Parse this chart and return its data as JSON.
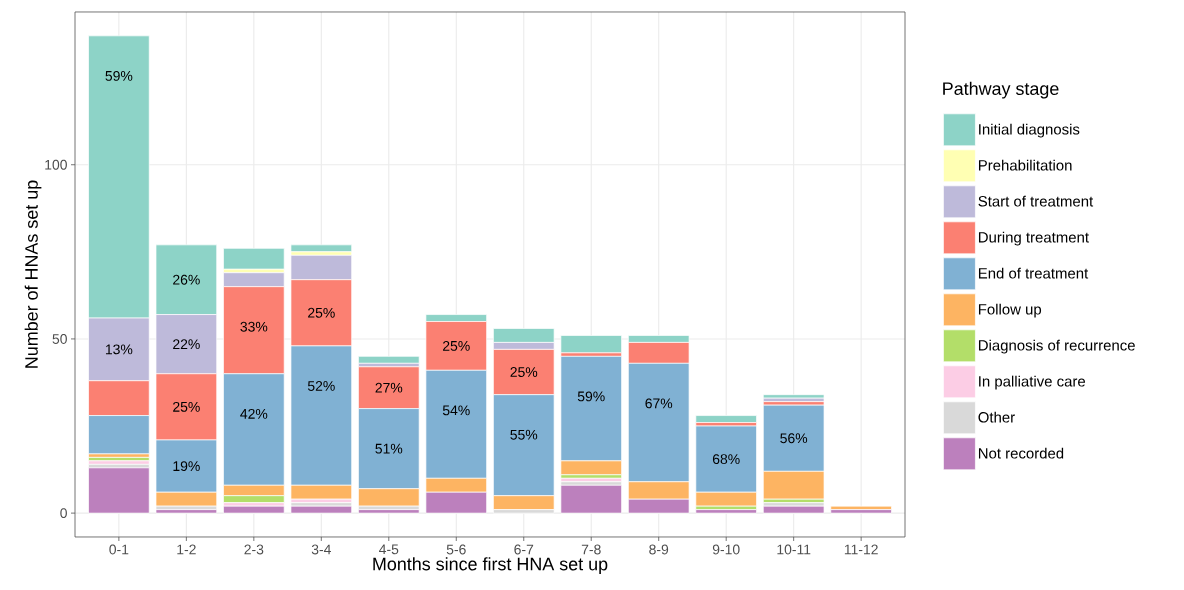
{
  "chart_data": {
    "type": "bar",
    "stacked": true,
    "xlabel": "Months since first HNA set up",
    "ylabel": "Number of HNAs set up",
    "legend_title": "Pathway stage",
    "categories": [
      "0-1",
      "1-2",
      "2-3",
      "3-4",
      "4-5",
      "5-6",
      "6-7",
      "7-8",
      "8-9",
      "9-10",
      "10-11",
      "11-12"
    ],
    "ylim": [
      -6.85,
      143.85
    ],
    "yticks": [
      0,
      50,
      100
    ],
    "grid": true,
    "legend": "right",
    "series": [
      {
        "name": "Not recorded",
        "color": "#bc80bd",
        "values": [
          13,
          1,
          2,
          2,
          1,
          6,
          0,
          8,
          4,
          1,
          2,
          1
        ]
      },
      {
        "name": "Other",
        "color": "#d9d9d9",
        "values": [
          1,
          1,
          0,
          1,
          1,
          0,
          1,
          1,
          0,
          0,
          1,
          0
        ]
      },
      {
        "name": "In palliative care",
        "color": "#fccde5",
        "values": [
          1,
          0,
          1,
          1,
          0,
          0,
          0,
          1,
          0,
          0,
          0,
          0
        ]
      },
      {
        "name": "Diagnosis of recurrence",
        "color": "#b3de69",
        "values": [
          1,
          0,
          2,
          0,
          0,
          0,
          0,
          1,
          0,
          1,
          1,
          0
        ]
      },
      {
        "name": "Follow up",
        "color": "#fdb462",
        "values": [
          1,
          4,
          3,
          4,
          5,
          4,
          4,
          4,
          5,
          4,
          8,
          1
        ]
      },
      {
        "name": "End of treatment",
        "color": "#80b1d3",
        "values": [
          11,
          15,
          32,
          40,
          23,
          31,
          29,
          30,
          34,
          19,
          19,
          0
        ]
      },
      {
        "name": "During treatment",
        "color": "#fb8072",
        "values": [
          10,
          19,
          25,
          19,
          12,
          14,
          13,
          1,
          6,
          1,
          1,
          0
        ]
      },
      {
        "name": "Start of treatment",
        "color": "#bebada",
        "values": [
          18,
          17,
          4,
          7,
          1,
          0,
          2,
          0,
          0,
          0,
          1,
          0
        ]
      },
      {
        "name": "Prehabilitation",
        "color": "#ffffb3",
        "values": [
          0,
          0,
          1,
          1,
          0,
          0,
          0,
          0,
          0,
          0,
          0,
          0
        ]
      },
      {
        "name": "Initial diagnosis",
        "color": "#8dd3c7",
        "values": [
          81,
          20,
          6,
          2,
          2,
          2,
          4,
          5,
          2,
          2,
          1,
          0
        ]
      }
    ],
    "annotations": [
      {
        "text": "59%",
        "x": "0-1",
        "y": 137
      },
      {
        "text": "13%",
        "x": "0-1",
        "y": 56
      },
      {
        "text": "26%",
        "x": "1-2",
        "y": 77
      },
      {
        "text": "22%",
        "x": "1-2",
        "y": 57
      },
      {
        "text": "25%",
        "x": "1-2",
        "y": 40
      },
      {
        "text": "19%",
        "x": "1-2",
        "y": 21
      },
      {
        "text": "33%",
        "x": "2-3",
        "y": 65
      },
      {
        "text": "42%",
        "x": "2-3",
        "y": 40
      },
      {
        "text": "25%",
        "x": "3-4",
        "y": 67
      },
      {
        "text": "52%",
        "x": "3-4",
        "y": 48
      },
      {
        "text": "27%",
        "x": "4-5",
        "y": 42
      },
      {
        "text": "51%",
        "x": "4-5",
        "y": 30
      },
      {
        "text": "25%",
        "x": "5-6",
        "y": 55
      },
      {
        "text": "54%",
        "x": "5-6",
        "y": 41
      },
      {
        "text": "25%",
        "x": "6-7",
        "y": 47
      },
      {
        "text": "55%",
        "x": "6-7",
        "y": 34
      },
      {
        "text": "59%",
        "x": "7-8",
        "y": 45
      },
      {
        "text": "67%",
        "x": "8-9",
        "y": 43
      },
      {
        "text": "68%",
        "x": "9-10",
        "y": 25
      },
      {
        "text": "56%",
        "x": "10-11",
        "y": 31
      }
    ]
  }
}
